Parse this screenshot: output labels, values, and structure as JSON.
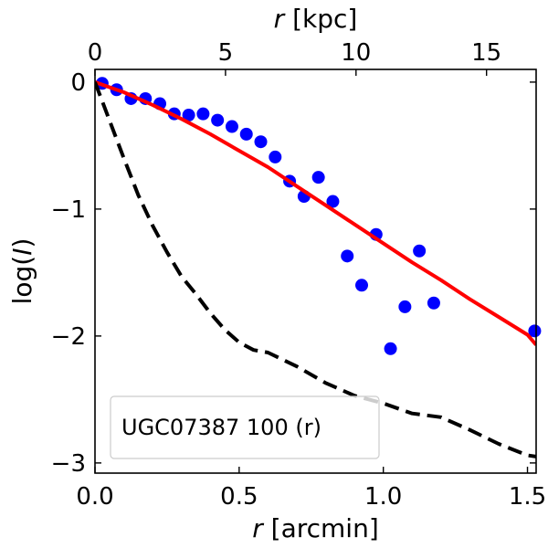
{
  "chart_data": {
    "type": "line",
    "xlabel_var": "r",
    "xlabel_unit": " [arcmin]",
    "x2label_var": "r",
    "x2label_unit": " [kpc]",
    "ylabel_pre": "log(",
    "ylabel_var": "I",
    "ylabel_post": ")",
    "xlim": [
      0.0,
      1.53
    ],
    "ylim": [
      -3.08,
      0.1
    ],
    "x2lim": [
      0.0,
      16.9
    ],
    "x_ticks": [
      0.0,
      0.5,
      1.0,
      1.5
    ],
    "x_tick_labels": [
      "0.0",
      "0.5",
      "1.0",
      "1.5"
    ],
    "x2_ticks": [
      0,
      5,
      10,
      15
    ],
    "x2_tick_labels": [
      "0",
      "5",
      "10",
      "15"
    ],
    "y_ticks": [
      0,
      -1,
      -2,
      -3
    ],
    "y_tick_labels": [
      "0",
      "−1",
      "−2",
      "−3"
    ],
    "legend_label": "UGC07387 100 (r)",
    "legend_loc": "lower-left",
    "series": [
      {
        "name": "data",
        "style": "scatter",
        "color": "#0000ff",
        "x": [
          0.025,
          0.075,
          0.125,
          0.175,
          0.225,
          0.275,
          0.325,
          0.375,
          0.425,
          0.475,
          0.525,
          0.575,
          0.625,
          0.675,
          0.725,
          0.775,
          0.825,
          0.875,
          0.925,
          0.975,
          1.025,
          1.075,
          1.125,
          1.175,
          1.525
        ],
        "y": [
          -0.01,
          -0.06,
          -0.13,
          -0.13,
          -0.17,
          -0.25,
          -0.26,
          -0.25,
          -0.3,
          -0.35,
          -0.41,
          -0.47,
          -0.59,
          -0.78,
          -0.9,
          -0.75,
          -0.94,
          -1.37,
          -1.6,
          -1.2,
          -2.1,
          -1.77,
          -1.33,
          -1.74,
          -1.96
        ]
      },
      {
        "name": "model",
        "style": "line",
        "color": "#ff0000",
        "x": [
          0.0,
          0.1,
          0.2,
          0.3,
          0.4,
          0.5,
          0.6,
          0.7,
          0.8,
          0.9,
          1.0,
          1.1,
          1.2,
          1.3,
          1.4,
          1.5,
          1.53
        ],
        "y": [
          0.0,
          -0.08,
          -0.18,
          -0.29,
          -0.41,
          -0.54,
          -0.67,
          -0.82,
          -0.97,
          -1.12,
          -1.27,
          -1.42,
          -1.56,
          -1.71,
          -1.85,
          -1.99,
          -2.07
        ]
      },
      {
        "name": "psf",
        "style": "dashed",
        "color": "#000000",
        "x": [
          0.0,
          0.05,
          0.1,
          0.15,
          0.2,
          0.25,
          0.3,
          0.35,
          0.4,
          0.45,
          0.5,
          0.55,
          0.6,
          0.7,
          0.8,
          0.9,
          1.0,
          1.1,
          1.2,
          1.3,
          1.4,
          1.5,
          1.53
        ],
        "y": [
          0.0,
          -0.3,
          -0.6,
          -0.89,
          -1.13,
          -1.34,
          -1.53,
          -1.67,
          -1.82,
          -1.95,
          -2.05,
          -2.11,
          -2.13,
          -2.24,
          -2.37,
          -2.47,
          -2.53,
          -2.61,
          -2.64,
          -2.74,
          -2.85,
          -2.94,
          -2.95
        ]
      }
    ]
  }
}
